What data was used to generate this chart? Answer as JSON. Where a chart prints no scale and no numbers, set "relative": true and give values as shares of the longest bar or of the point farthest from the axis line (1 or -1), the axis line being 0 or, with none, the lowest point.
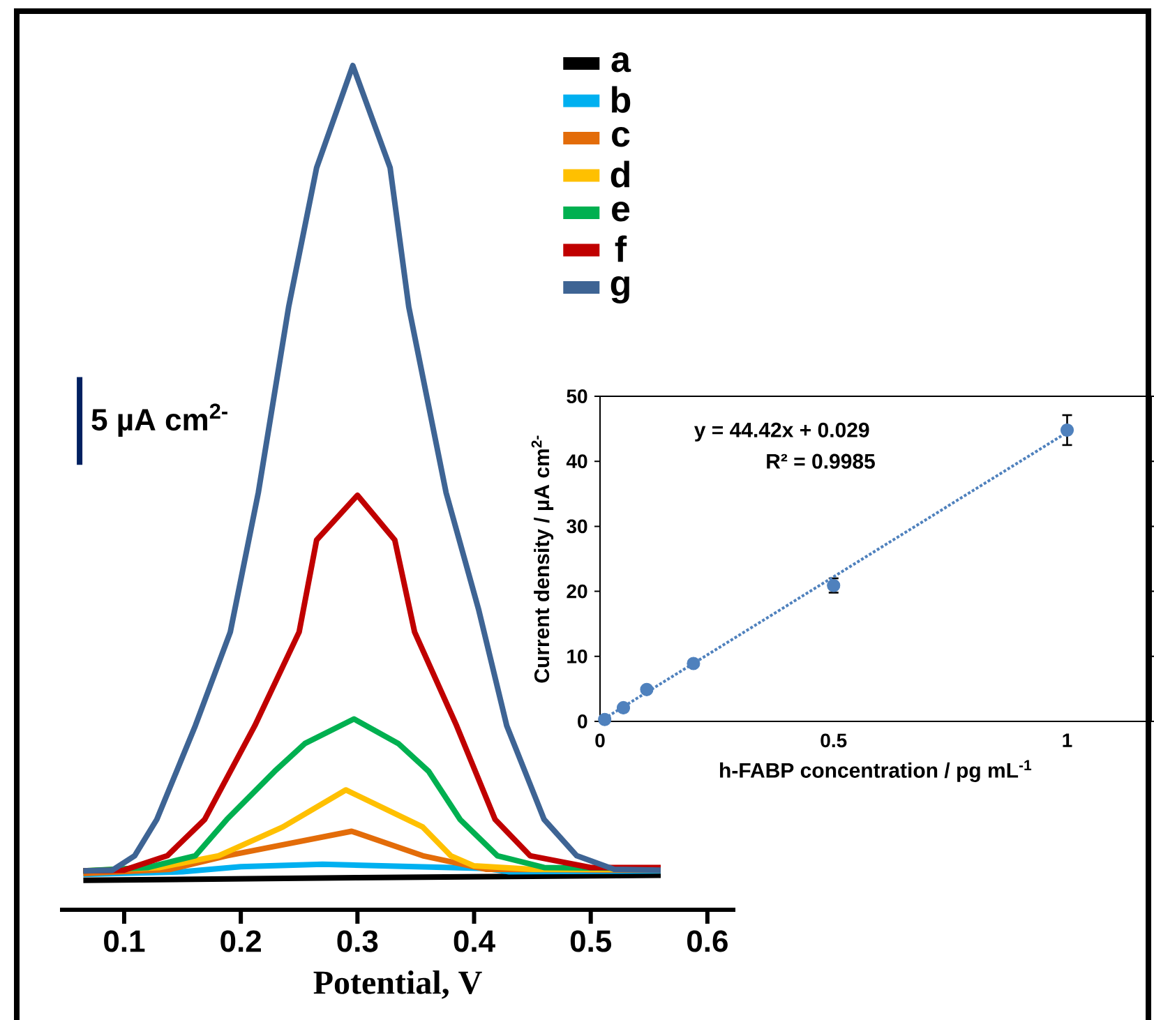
{
  "chart_data": [
    {
      "type": "line",
      "relative": true,
      "xlabel": "Potential, V",
      "xlim": [
        0.045,
        0.624
      ],
      "xticks": [
        0.1,
        0.2,
        0.3,
        0.4,
        0.5,
        0.6
      ],
      "legend": "top right",
      "annotations": [
        "5 µA cm$^{2-}$"
      ],
      "series": [
        {
          "name": "a",
          "color": "#000000",
          "x": [
            0.065,
            0.3,
            0.56
          ],
          "values": [
            0.035,
            0.038,
            0.041
          ]
        },
        {
          "name": "b",
          "color": "#00b0f0",
          "x": [
            0.065,
            0.15,
            0.2,
            0.27,
            0.35,
            0.41,
            0.43,
            0.56
          ],
          "values": [
            0.042,
            0.045,
            0.051,
            0.054,
            0.051,
            0.049,
            0.045,
            0.046
          ]
        },
        {
          "name": "c",
          "color": "#e36c09",
          "x": [
            0.065,
            0.14,
            0.188,
            0.295,
            0.356,
            0.41,
            0.56
          ],
          "values": [
            0.043,
            0.048,
            0.064,
            0.093,
            0.064,
            0.048,
            0.047
          ]
        },
        {
          "name": "d",
          "color": "#ffc000",
          "x": [
            0.065,
            0.13,
            0.181,
            0.236,
            0.29,
            0.356,
            0.38,
            0.4,
            0.45,
            0.56
          ],
          "values": [
            0.046,
            0.05,
            0.064,
            0.098,
            0.142,
            0.098,
            0.064,
            0.052,
            0.048,
            0.048
          ]
        },
        {
          "name": "e",
          "color": "#00b050",
          "x": [
            0.065,
            0.12,
            0.161,
            0.188,
            0.229,
            0.255,
            0.297,
            0.335,
            0.361,
            0.388,
            0.42,
            0.46,
            0.56
          ],
          "values": [
            0.046,
            0.05,
            0.064,
            0.107,
            0.164,
            0.197,
            0.226,
            0.197,
            0.164,
            0.107,
            0.064,
            0.05,
            0.049
          ]
        },
        {
          "name": "f",
          "color": "#c00000",
          "x": [
            0.065,
            0.1,
            0.137,
            0.169,
            0.212,
            0.25,
            0.265,
            0.3,
            0.332,
            0.349,
            0.385,
            0.418,
            0.448,
            0.5,
            0.56
          ],
          "values": [
            0.046,
            0.047,
            0.064,
            0.107,
            0.218,
            0.329,
            0.438,
            0.491,
            0.438,
            0.329,
            0.218,
            0.107,
            0.064,
            0.05,
            0.05
          ]
        },
        {
          "name": "g",
          "color": "#3e6494",
          "x": [
            0.065,
            0.09,
            0.109,
            0.128,
            0.161,
            0.191,
            0.215,
            0.241,
            0.265,
            0.296,
            0.328,
            0.344,
            0.376,
            0.404,
            0.428,
            0.46,
            0.488,
            0.52,
            0.56
          ],
          "values": [
            0.046,
            0.047,
            0.064,
            0.107,
            0.218,
            0.329,
            0.494,
            0.714,
            0.879,
            1.0,
            0.879,
            0.714,
            0.494,
            0.355,
            0.218,
            0.107,
            0.064,
            0.048,
            0.047
          ]
        }
      ]
    },
    {
      "type": "scatter",
      "xlabel": "h-FABP concentration / pg mL$^{-1}$",
      "ylabel": "Current density / µA cm$^{2-}$",
      "xlim": [
        0,
        1.18
      ],
      "xticks": [
        0,
        0.5,
        1
      ],
      "ylim": [
        0,
        50
      ],
      "yticks": [
        0,
        10,
        20,
        30,
        40,
        50
      ],
      "annotations": [
        "y = 44.42x + 0.029",
        "R² = 0.9985"
      ],
      "series": [
        {
          "color": "#4f81bd",
          "marker": "circle",
          "x": [
            0.01,
            0.05,
            0.1,
            0.2,
            0.5,
            1
          ],
          "values": [
            0.3,
            2.1,
            4.9,
            8.9,
            20.9,
            44.8
          ],
          "errors": [
            null,
            null,
            null,
            null,
            1.1,
            2.3
          ]
        },
        {
          "type": "line",
          "color": "#4f81bd",
          "line_style": "dotted",
          "x": [
            0,
            1
          ],
          "values": [
            0.029,
            44.449
          ]
        }
      ]
    }
  ]
}
